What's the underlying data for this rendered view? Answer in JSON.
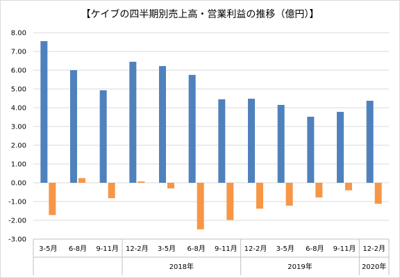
{
  "chart_data": {
    "type": "bar",
    "title": "【ケイブの四半期別売上高・営業利益の推移（億円）】",
    "categories": [
      "3-5月",
      "6-8月",
      "9-11月",
      "12-2月",
      "3-5月",
      "6-8月",
      "9-11月",
      "12-2月",
      "3-5月",
      "6-8月",
      "9-11月",
      "12-2月"
    ],
    "year_groups": [
      {
        "label": "",
        "start": 0,
        "end": 2
      },
      {
        "label": "2018年",
        "start": 3,
        "end": 6
      },
      {
        "label": "2019年",
        "start": 7,
        "end": 10
      },
      {
        "label": "2020年",
        "start": 11,
        "end": 11
      }
    ],
    "series": [
      {
        "values": [
          7.55,
          6.0,
          4.93,
          6.45,
          6.22,
          5.75,
          4.45,
          4.48,
          4.15,
          3.52,
          3.78,
          4.37
        ],
        "color": "#4f81bd"
      },
      {
        "values": [
          -1.72,
          0.25,
          -0.82,
          0.07,
          -0.3,
          -2.48,
          -1.98,
          -1.38,
          -1.22,
          -0.78,
          -0.4,
          -1.12
        ],
        "color": "#f79646"
      }
    ],
    "yticks": [
      "8.00",
      "7.00",
      "6.00",
      "5.00",
      "4.00",
      "3.00",
      "2.00",
      "1.00",
      "0.00",
      "-1.00",
      "-2.00",
      "-3.00"
    ],
    "ylim": [
      -3,
      8
    ],
    "grid": true,
    "legend": "none"
  }
}
